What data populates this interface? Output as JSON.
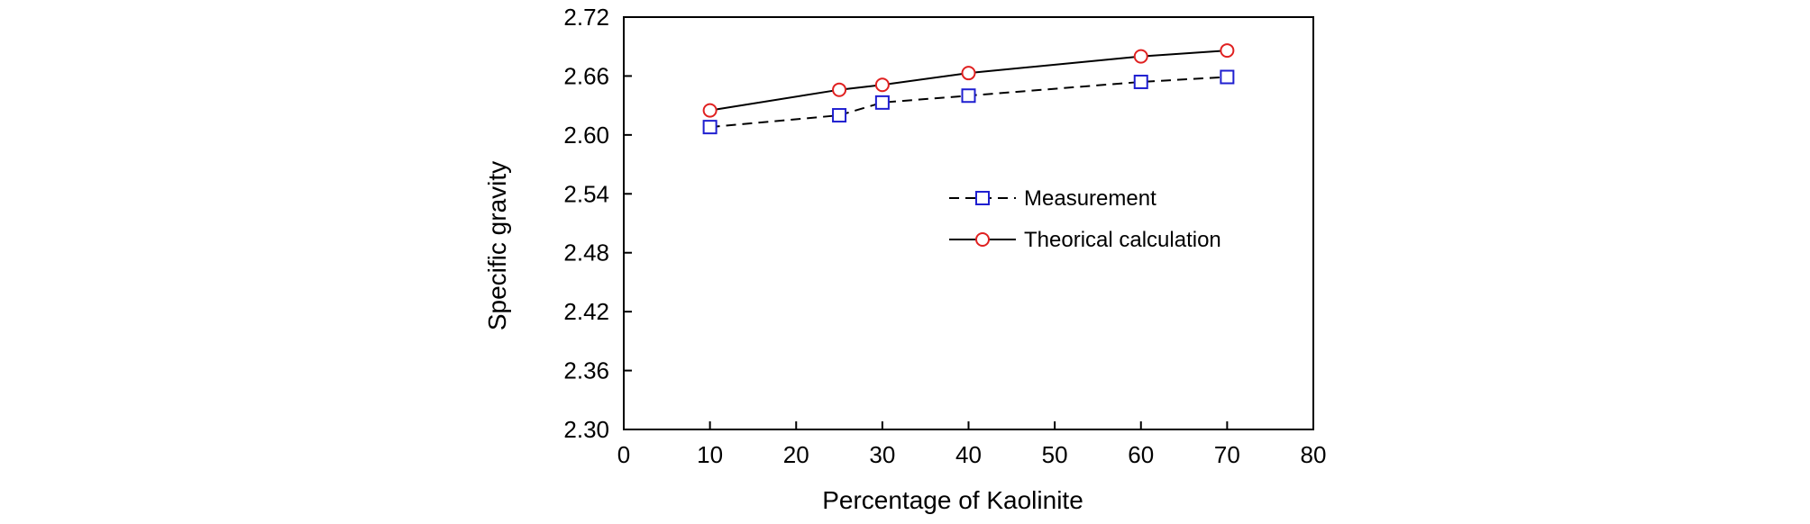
{
  "chart_data": {
    "type": "line",
    "xlabel": "Percentage of Kaolinite",
    "ylabel": "Specific gravity",
    "xlim": [
      0,
      80
    ],
    "ylim": [
      2.3,
      2.72
    ],
    "xticks": [
      "0",
      "10",
      "20",
      "30",
      "40",
      "50",
      "60",
      "70",
      "80"
    ],
    "yticks": [
      "2.30",
      "2.36",
      "2.42",
      "2.48",
      "2.54",
      "2.60",
      "2.66",
      "2.72"
    ],
    "grid": false,
    "legend_position": "right-center",
    "series": [
      {
        "name": "Measurement",
        "x": [
          10,
          25,
          30,
          40,
          60,
          70
        ],
        "y": [
          2.608,
          2.62,
          2.633,
          2.64,
          2.654,
          2.659
        ],
        "color": "#1f1fd0",
        "line": "dashed",
        "line_color": "#000000",
        "marker": "square"
      },
      {
        "name": "Theorical calculation",
        "x": [
          10,
          25,
          30,
          40,
          60,
          70
        ],
        "y": [
          2.625,
          2.646,
          2.651,
          2.663,
          2.68,
          2.686
        ],
        "color": "#e02020",
        "line": "solid",
        "line_color": "#000000",
        "marker": "circle"
      }
    ]
  }
}
